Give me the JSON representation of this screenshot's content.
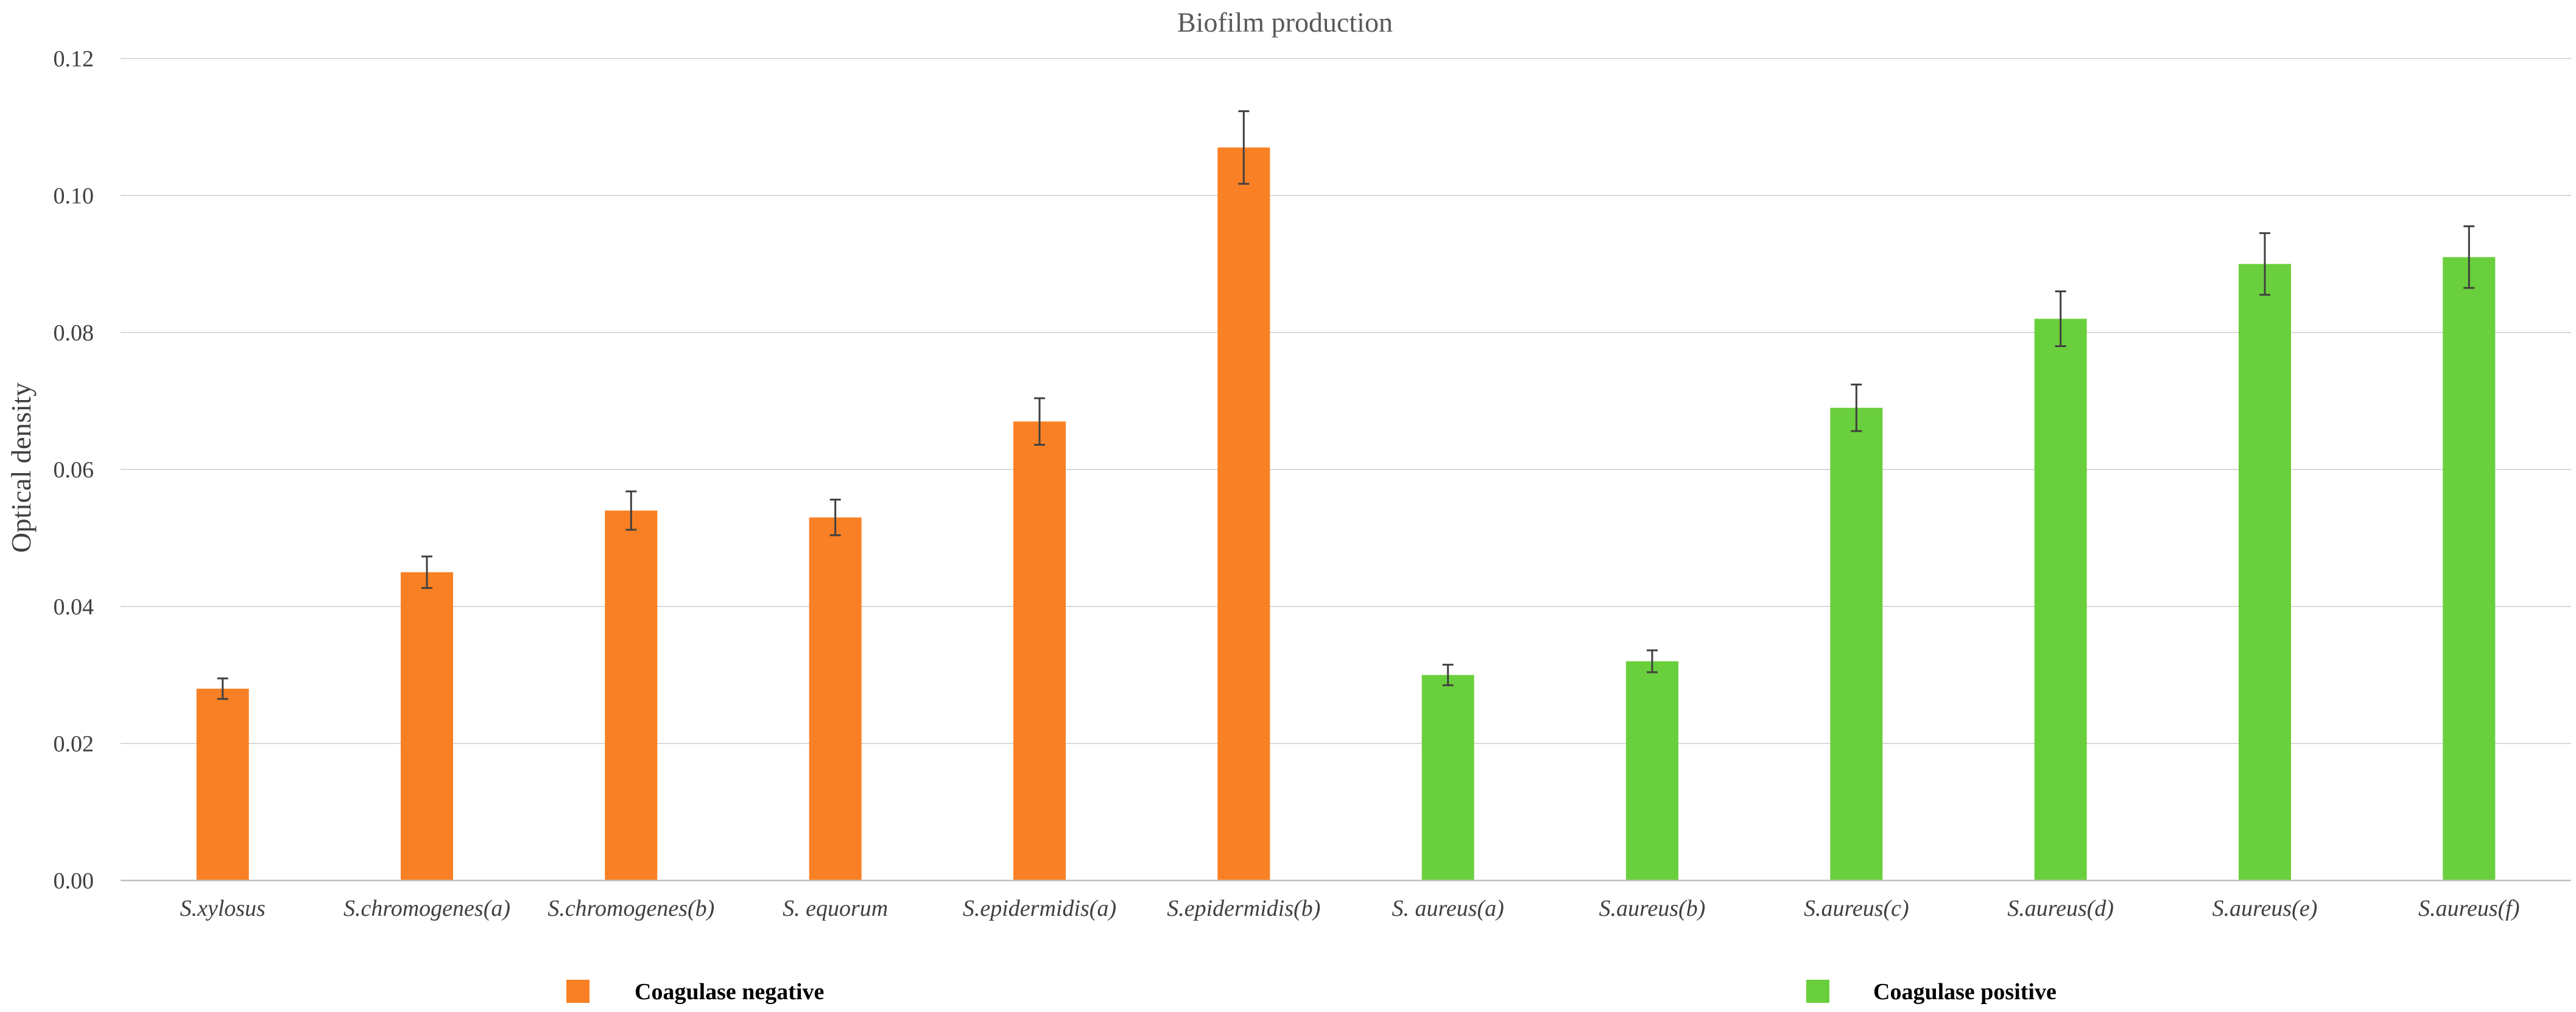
{
  "chart_data": {
    "type": "bar",
    "title": "Biofilm production",
    "xlabel": "",
    "ylabel": "Optical density",
    "ylim": [
      0,
      0.12
    ],
    "yticks": [
      "0.00",
      "0.02",
      "0.04",
      "0.06",
      "0.08",
      "0.10",
      "0.12"
    ],
    "grid": true,
    "legend_position": "bottom",
    "categories": [
      "S.xylosus",
      "S.chromogenes(a)",
      "S.chromogenes(b)",
      "S. equorum",
      "S.epidermidis(a)",
      "S.epidermidis(b)",
      "S. aureus(a)",
      "S.aureus(b)",
      "S.aureus(c)",
      "S.aureus(d)",
      "S.aureus(e)",
      "S.aureus(f)"
    ],
    "values": [
      0.028,
      0.045,
      0.054,
      0.053,
      0.067,
      0.107,
      0.03,
      0.032,
      0.069,
      0.082,
      0.09,
      0.091
    ],
    "errors": [
      0.0015,
      0.0023,
      0.0028,
      0.0026,
      0.0034,
      0.0053,
      0.0015,
      0.0016,
      0.0034,
      0.004,
      0.0045,
      0.0045
    ],
    "groups": [
      "Coagulase negative",
      "Coagulase negative",
      "Coagulase negative",
      "Coagulase negative",
      "Coagulase negative",
      "Coagulase negative",
      "Coagulase positive",
      "Coagulase positive",
      "Coagulase positive",
      "Coagulase positive",
      "Coagulase positive",
      "Coagulase positive"
    ],
    "legend": [
      {
        "name": "Coagulase negative",
        "color": "#f98024"
      },
      {
        "name": "Coagulase positive",
        "color": "#6acf3d"
      }
    ]
  }
}
